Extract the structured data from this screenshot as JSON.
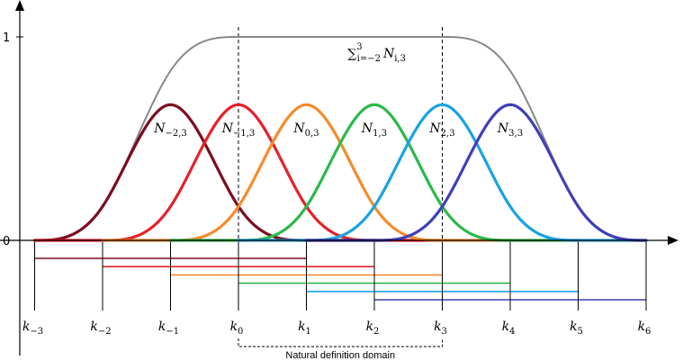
{
  "chart_data": {
    "type": "line",
    "title": "",
    "xlabel": "",
    "ylabel": "",
    "y_ticks": [
      {
        "value": 0,
        "label": "0"
      },
      {
        "value": 1,
        "label": "1"
      }
    ],
    "ylim": [
      0,
      1
    ],
    "knots": [
      {
        "t": -3,
        "name": "k",
        "sub": "−3"
      },
      {
        "t": -2,
        "name": "k",
        "sub": "−2"
      },
      {
        "t": -1,
        "name": "k",
        "sub": "−1"
      },
      {
        "t": 0,
        "name": "k",
        "sub": "0"
      },
      {
        "t": 1,
        "name": "k",
        "sub": "1"
      },
      {
        "t": 2,
        "name": "k",
        "sub": "2"
      },
      {
        "t": 3,
        "name": "k",
        "sub": "3"
      },
      {
        "t": 4,
        "name": "k",
        "sub": "4"
      },
      {
        "t": 5,
        "name": "k",
        "sub": "5"
      },
      {
        "t": 6,
        "name": "k",
        "sub": "6"
      }
    ],
    "basis_degree": 3,
    "series": [
      {
        "name": "N",
        "sub": "−2,3",
        "start_knot": -3,
        "color": "#7b0d1e",
        "peak": 0.6667
      },
      {
        "name": "N",
        "sub": "−1,3",
        "start_knot": -2,
        "color": "#e5212b",
        "peak": 0.6667
      },
      {
        "name": "N",
        "sub": "0,3",
        "start_knot": -1,
        "color": "#f58b2b",
        "peak": 0.6667
      },
      {
        "name": "N",
        "sub": "1,3",
        "start_knot": 0,
        "color": "#2db84a",
        "peak": 0.6667
      },
      {
        "name": "N",
        "sub": "2,3",
        "start_knot": 1,
        "color": "#19a3e0",
        "peak": 0.6667
      },
      {
        "name": "N",
        "sub": "3,3",
        "start_knot": 2,
        "color": "#3f3fb8",
        "peak": 0.6667
      }
    ],
    "sum_curve": {
      "label_main": "N",
      "label_sum_lower": "i=−2",
      "label_sum_upper": "3",
      "label_sub": "i,3",
      "color": "#888888",
      "max": 1
    },
    "natural_domain": {
      "from_knot": 0,
      "to_knot": 3,
      "label": "Natural definition domain"
    }
  }
}
